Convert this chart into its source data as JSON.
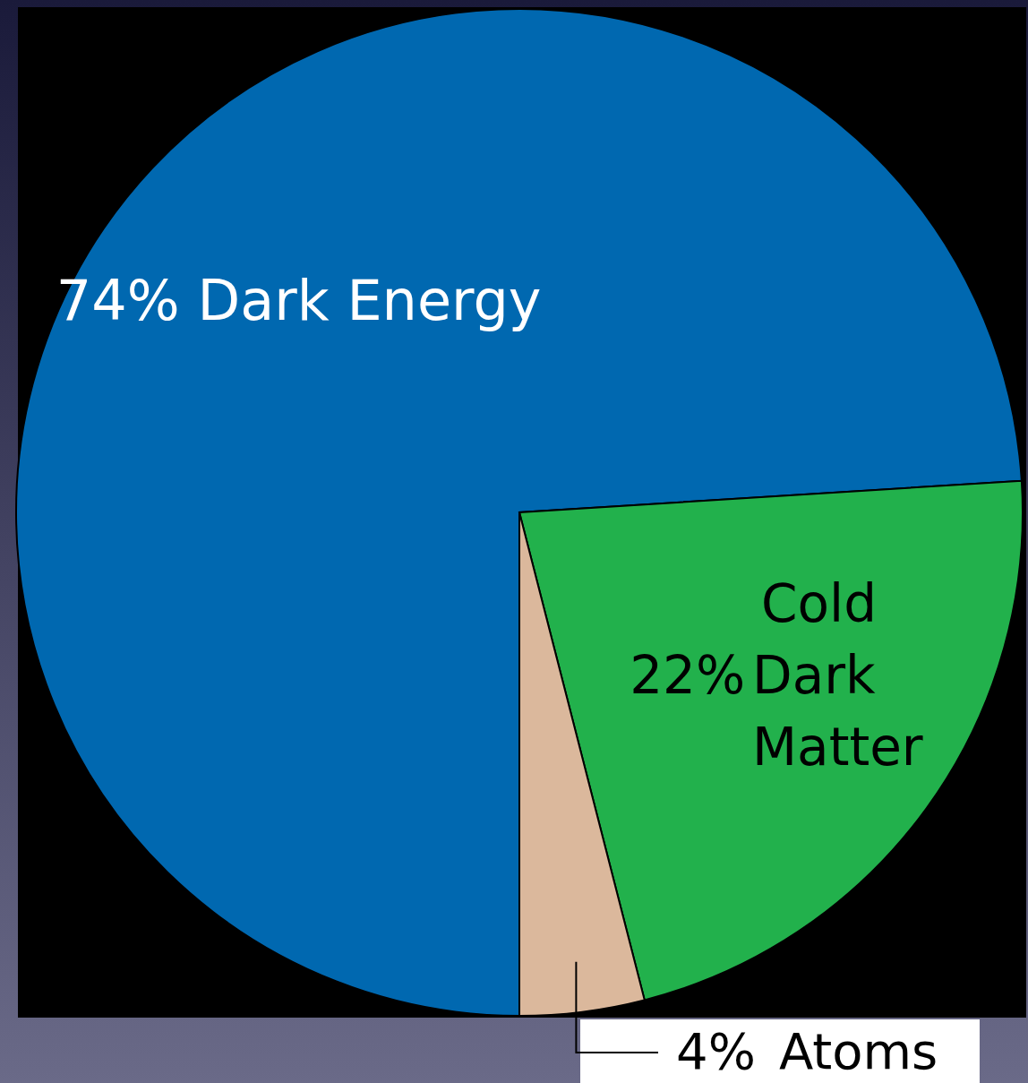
{
  "chart_data": {
    "type": "pie",
    "categories": [
      "Dark Energy",
      "Cold Dark Matter",
      "Atoms"
    ],
    "values": [
      74,
      22,
      4
    ],
    "value_labels": [
      "74%",
      "22%",
      "4%"
    ],
    "colors": [
      "#0068b0",
      "#22b14c",
      "#dbb89c"
    ]
  }
}
